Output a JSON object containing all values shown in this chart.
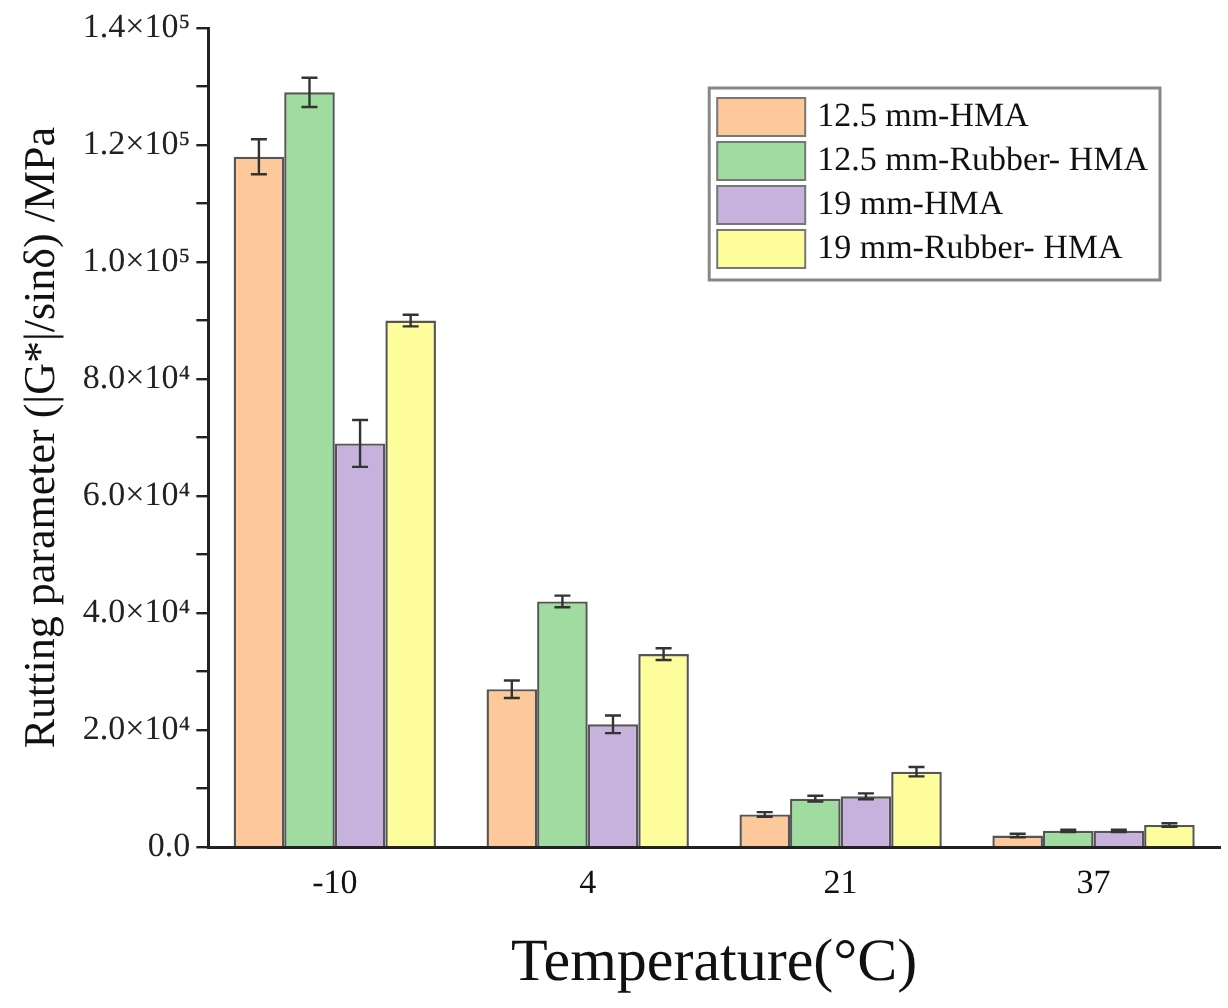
{
  "chart_data": {
    "type": "bar",
    "xlabel": "Temperature(°C)",
    "ylabel": "Rutting parameter (|G*|/sinδ) /MPa",
    "categories": [
      "-10",
      "4",
      "21",
      "37"
    ],
    "series": [
      {
        "name": "12.5 mm-HMA",
        "color": "#fdc99a",
        "values": [
          118000,
          27000,
          5600,
          2000
        ],
        "errors": [
          3000,
          1500,
          400,
          300
        ]
      },
      {
        "name": "12.5 mm-Rubber- HMA",
        "color": "#a0dba0",
        "values": [
          129000,
          42000,
          8300,
          2800
        ],
        "errors": [
          2500,
          1000,
          500,
          200
        ]
      },
      {
        "name": "19 mm-HMA",
        "color": "#c6b2dc",
        "values": [
          69000,
          21000,
          8700,
          2800
        ],
        "errors": [
          4000,
          1500,
          500,
          200
        ]
      },
      {
        "name": "19 mm-Rubber- HMA",
        "color": "#fdfd9c",
        "values": [
          90000,
          33000,
          12900,
          3800
        ],
        "errors": [
          1000,
          1000,
          800,
          300
        ]
      }
    ],
    "ylim": [
      0,
      140000
    ],
    "yticks": [
      {
        "value": 0,
        "label": "0.0"
      },
      {
        "value": 10000,
        "label": null
      },
      {
        "value": 20000,
        "label": "2.0×10⁴"
      },
      {
        "value": 30000,
        "label": null
      },
      {
        "value": 40000,
        "label": "4.0×10⁴"
      },
      {
        "value": 50000,
        "label": null
      },
      {
        "value": 60000,
        "label": "6.0×10⁴"
      },
      {
        "value": 70000,
        "label": null
      },
      {
        "value": 80000,
        "label": "8.0×10⁴"
      },
      {
        "value": 90000,
        "label": null
      },
      {
        "value": 100000,
        "label": "1.0×10⁵"
      },
      {
        "value": 110000,
        "label": null
      },
      {
        "value": 120000,
        "label": "1.2×10⁵"
      },
      {
        "value": 130000,
        "label": null
      },
      {
        "value": 140000,
        "label": "1.4×10⁵"
      }
    ],
    "grid": false,
    "legend": "top right"
  }
}
